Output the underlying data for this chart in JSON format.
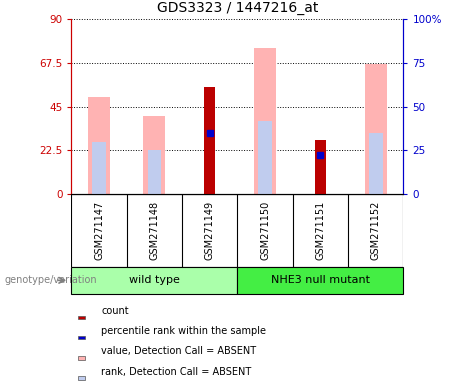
{
  "title": "GDS3323 / 1447216_at",
  "samples": [
    "GSM271147",
    "GSM271148",
    "GSM271149",
    "GSM271150",
    "GSM271151",
    "GSM271152"
  ],
  "group_labels": [
    "wild type",
    "NHE3 null mutant"
  ],
  "group_colors": [
    "#aaffaa",
    "#44ee44"
  ],
  "ylim_left": [
    0,
    90
  ],
  "ylim_right": [
    0,
    100
  ],
  "yticks_left": [
    0,
    22.5,
    45,
    67.5,
    90
  ],
  "yticks_right": [
    0,
    25,
    50,
    75,
    100
  ],
  "ytick_labels_left": [
    "0",
    "22.5",
    "45",
    "67.5",
    "90"
  ],
  "ytick_labels_right": [
    "0",
    "25",
    "50",
    "75",
    "100%"
  ],
  "pink_bars": [
    50,
    40,
    0,
    75,
    0,
    67
  ],
  "light_blue_bars": [
    30,
    25,
    0,
    42,
    0,
    35
  ],
  "red_bars": [
    0,
    0,
    55,
    0,
    28,
    0
  ],
  "blue_dots": [
    0,
    0,
    35,
    0,
    22,
    0
  ],
  "pink_color": "#ffb3b3",
  "light_blue_color": "#c0ccee",
  "red_color": "#bb0000",
  "blue_color": "#0000cc",
  "left_axis_color": "#cc0000",
  "right_axis_color": "#0000cc",
  "bg_color": "#ffffff",
  "grid_color": "#000000",
  "sample_box_color": "#d3d3d3",
  "legend_items": [
    {
      "label": "count",
      "color": "#bb0000"
    },
    {
      "label": "percentile rank within the sample",
      "color": "#0000cc"
    },
    {
      "label": "value, Detection Call = ABSENT",
      "color": "#ffb3b3"
    },
    {
      "label": "rank, Detection Call = ABSENT",
      "color": "#c0ccee"
    }
  ],
  "genotype_label": "genotype/variation",
  "bar_width": 0.35,
  "pink_bar_width": 0.4,
  "lb_bar_width": 0.25
}
